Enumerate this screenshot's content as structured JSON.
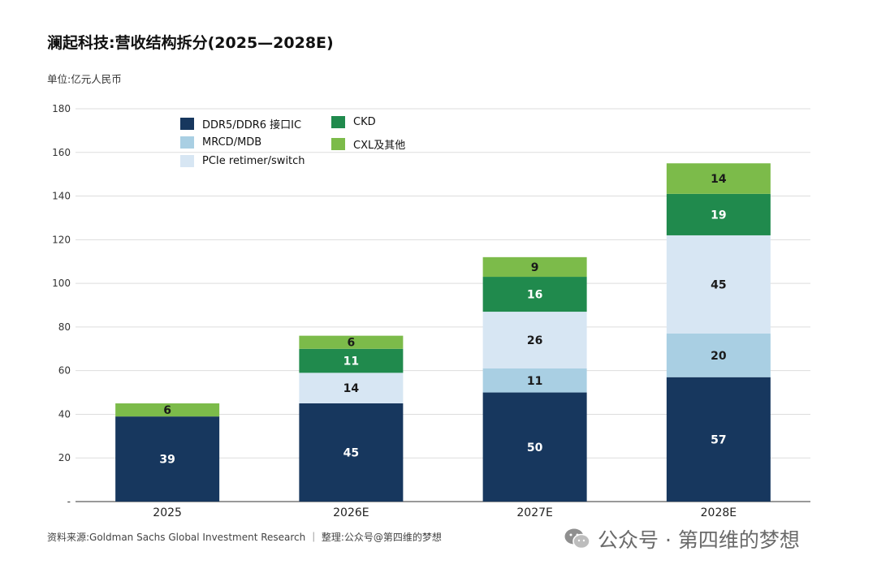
{
  "header": {
    "title": "澜起科技:营收结构拆分(2025—2028E)",
    "unit": "单位:亿元人民币"
  },
  "footer": {
    "source": "资料来源:Goldman Sachs Global Investment Research ｜ 整理:公众号@第四维的梦想",
    "brand": "公众号 · 第四维的梦想"
  },
  "colors": {
    "ddr_interface": "#17375e",
    "mrcd_mdb": "#a9cfe3",
    "pcie": "#d7e6f3",
    "ckd": "#208a4d",
    "cxl_other": "#7cbb4a",
    "grid": "#dddddd",
    "axis": "#333333"
  },
  "chart_data": {
    "type": "bar",
    "stacked": true,
    "categories": [
      "2025",
      "2026E",
      "2027E",
      "2028E"
    ],
    "series": [
      {
        "name": "DDR5/DDR6 接口IC",
        "color": "#17375e",
        "label_color": "#ffffff",
        "values": [
          39,
          45,
          50,
          57
        ]
      },
      {
        "name": "MRCD/MDB",
        "color": "#a9cfe3",
        "label_color": "#1a1a1a",
        "values": [
          0,
          0,
          11,
          20
        ]
      },
      {
        "name": "PCIe retimer/switch",
        "color": "#d7e6f3",
        "label_color": "#1a1a1a",
        "values": [
          0,
          14,
          26,
          45
        ]
      },
      {
        "name": "CKD",
        "color": "#208a4d",
        "label_color": "#ffffff",
        "values": [
          0,
          11,
          16,
          19
        ]
      },
      {
        "name": "CXL及其他",
        "color": "#7cbb4a",
        "label_color": "#1a1a1a",
        "values": [
          6,
          6,
          9,
          14
        ]
      }
    ],
    "y_ticks": [
      "-",
      "20",
      "40",
      "60",
      "80",
      "100",
      "120",
      "140",
      "160",
      "180"
    ],
    "ylim": [
      0,
      180
    ],
    "grid": true,
    "legend_position": "top-left",
    "xlabel": "",
    "ylabel": ""
  }
}
